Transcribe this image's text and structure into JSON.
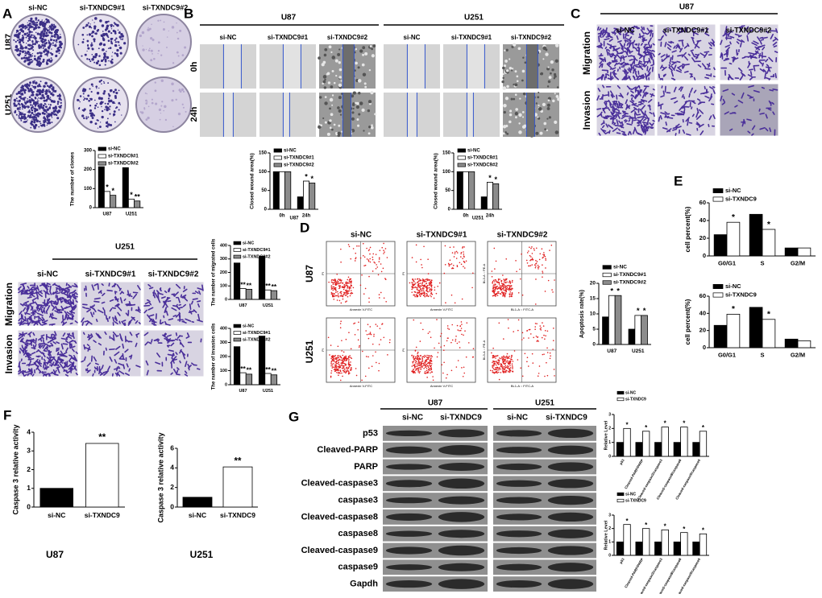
{
  "panel_a": {
    "letter": "A",
    "columns": [
      "si-NC",
      "si-TXNDC9#1",
      "si-TXNDC9#2"
    ],
    "rows": [
      "U87",
      "U251"
    ]
  },
  "panel_b": {
    "letter": "B",
    "groups": [
      "U87",
      "U251"
    ],
    "columns": [
      "si-NC",
      "si-TXNDC9#1",
      "si-TXNDC9#2"
    ],
    "rows": [
      "0h",
      "24h"
    ]
  },
  "panel_c": {
    "letter": "C",
    "group": "U87",
    "columns": [
      "si-NC",
      "si-TXNDC9#1",
      "si-TXNDC9#2"
    ],
    "rows": [
      "Migration",
      "Invasion"
    ]
  },
  "panel_u251": {
    "group": "U251",
    "columns": [
      "si-NC",
      "si-TXNDC9#1",
      "si-TXNDC9#2"
    ],
    "rows": [
      "Migration",
      "Invasion"
    ]
  },
  "panel_d": {
    "letter": "D",
    "columns": [
      "si-NC",
      "si-TXNDC9#1",
      "si-TXNDC9#2"
    ],
    "rows": [
      "U87",
      "U251"
    ],
    "x_axis_labels": [
      "Annexin V-FITC",
      "Annexin V-FITC",
      "BL1-A :: FITC-A"
    ],
    "y_axis_labels": [
      "PI",
      "PI",
      "BL3-A :: PE-A"
    ]
  },
  "panel_e": {
    "letter": "E"
  },
  "panel_f": {
    "letter": "F",
    "cells": [
      "U87",
      "U251"
    ]
  },
  "panel_g": {
    "letter": "G",
    "groups": [
      "U87",
      "U251"
    ],
    "columns": [
      "si-NC",
      "si-TXNDC9"
    ],
    "rows": [
      "p53",
      "Cleaved-PARP",
      "PARP",
      "Cleaved-caspase3",
      "caspase3",
      "Cleaved-caspase8",
      "caspase8",
      "Cleaved-caspase9",
      "caspase9",
      "Gapdh"
    ]
  },
  "charts": [
    {
      "type": "bar",
      "y_label": "The number of clones",
      "categories": [
        "U87",
        "U251"
      ],
      "ylim": [
        0,
        300
      ],
      "yticks": [
        0,
        100,
        200,
        300
      ],
      "series": [
        {
          "name": "si-NC",
          "color": "#000000",
          "values": [
            215,
            210
          ],
          "labels": [
            null,
            null
          ]
        },
        {
          "name": "si-TXNDC9#1",
          "color": "#ffffff",
          "values": [
            85,
            45
          ],
          "labels": [
            "*",
            "*"
          ]
        },
        {
          "name": "si-TXNDC9#2",
          "color": "#8c8c8c",
          "values": [
            65,
            35
          ],
          "labels": [
            "*",
            "**"
          ]
        }
      ]
    },
    {
      "type": "bar",
      "y_label": "Closed wound area(%)",
      "x_label": "U87",
      "categories": [
        "0h",
        "24h"
      ],
      "ylim": [
        0,
        150
      ],
      "yticks": [
        0,
        50,
        100,
        150
      ],
      "series": [
        {
          "name": "si-NC",
          "color": "#000000",
          "values": [
            100,
            33
          ],
          "labels": [
            null,
            null
          ]
        },
        {
          "name": "si-TXNDC9#1",
          "color": "#ffffff",
          "values": [
            100,
            75
          ],
          "labels": [
            null,
            "*"
          ]
        },
        {
          "name": "si-TXNDC9#2",
          "color": "#8c8c8c",
          "values": [
            100,
            70
          ],
          "labels": [
            null,
            "*"
          ]
        }
      ]
    },
    {
      "type": "bar",
      "y_label": "Closed wound area(%)",
      "x_label": "U251",
      "categories": [
        "0h",
        "24h"
      ],
      "ylim": [
        0,
        150
      ],
      "yticks": [
        0,
        50,
        100,
        150
      ],
      "series": [
        {
          "name": "si-NC",
          "color": "#000000",
          "values": [
            100,
            33
          ],
          "labels": [
            null,
            null
          ]
        },
        {
          "name": "si-TXNDC9#1",
          "color": "#ffffff",
          "values": [
            100,
            72
          ],
          "labels": [
            null,
            "*"
          ]
        },
        {
          "name": "si-TXNDC9#2",
          "color": "#8c8c8c",
          "values": [
            100,
            68
          ],
          "labels": [
            null,
            "*"
          ]
        }
      ]
    },
    {
      "type": "bar",
      "y_label": "The number of migrated cells",
      "categories": [
        "U87",
        "U251"
      ],
      "ylim": [
        0,
        400
      ],
      "yticks": [
        0,
        100,
        200,
        300,
        400
      ],
      "series": [
        {
          "name": "si-NC",
          "color": "#000000",
          "values": [
            270,
            320
          ],
          "labels": [
            null,
            null
          ]
        },
        {
          "name": "si-TXNDC9#1",
          "color": "#ffffff",
          "values": [
            80,
            70
          ],
          "labels": [
            "**",
            "**"
          ]
        },
        {
          "name": "si-TXNDC9#2",
          "color": "#8c8c8c",
          "values": [
            75,
            65
          ],
          "labels": [
            "**",
            "**"
          ]
        }
      ]
    },
    {
      "type": "bar",
      "y_label": "The number of invasion cells",
      "categories": [
        "U87",
        "U251"
      ],
      "ylim": [
        0,
        400
      ],
      "yticks": [
        0,
        100,
        200,
        300,
        400
      ],
      "series": [
        {
          "name": "si-NC",
          "color": "#000000",
          "values": [
            270,
            345
          ],
          "labels": [
            null,
            null
          ]
        },
        {
          "name": "si-TXNDC9#1",
          "color": "#ffffff",
          "values": [
            85,
            80
          ],
          "labels": [
            "**",
            "**"
          ]
        },
        {
          "name": "si-TXNDC9#2",
          "color": "#8c8c8c",
          "values": [
            75,
            70
          ],
          "labels": [
            "**",
            "**"
          ]
        }
      ]
    },
    {
      "type": "bar",
      "y_label": "Apoptosis rate(%)",
      "categories": [
        "U87",
        "U251"
      ],
      "ylim": [
        0,
        20
      ],
      "yticks": [
        0,
        5,
        10,
        15,
        20
      ],
      "series": [
        {
          "name": "si-NC",
          "color": "#000000",
          "values": [
            9,
            5
          ],
          "labels": [
            null,
            null
          ]
        },
        {
          "name": "si-TXNDC9#1",
          "color": "#ffffff",
          "values": [
            16,
            9.5
          ],
          "labels": [
            "*",
            "*"
          ]
        },
        {
          "name": "si-TXNDC9#2",
          "color": "#8c8c8c",
          "values": [
            16,
            9.5
          ],
          "labels": [
            "*",
            "*"
          ]
        }
      ]
    },
    {
      "type": "bar",
      "y_label": "cell percent(%)",
      "categories": [
        "G0/G1",
        "S",
        "G2/M"
      ],
      "ylim": [
        0,
        60
      ],
      "yticks": [
        0,
        20,
        40,
        60
      ],
      "series": [
        {
          "name": "si-NC",
          "color": "#000000",
          "values": [
            24,
            47,
            9
          ],
          "labels": [
            null,
            null,
            null
          ]
        },
        {
          "name": "si-TXNDC9",
          "color": "#ffffff",
          "values": [
            38,
            30,
            9
          ],
          "labels": [
            "*",
            "*",
            null
          ]
        }
      ]
    },
    {
      "type": "bar",
      "y_label": "cell percent(%)",
      "categories": [
        "G0/G1",
        "S",
        "G2/M"
      ],
      "ylim": [
        0,
        60
      ],
      "yticks": [
        0,
        20,
        40,
        60
      ],
      "series": [
        {
          "name": "si-NC",
          "color": "#000000",
          "values": [
            26,
            47,
            10
          ],
          "labels": [
            null,
            null,
            null
          ]
        },
        {
          "name": "si-TXNDC9",
          "color": "#ffffff",
          "values": [
            39,
            33,
            8
          ],
          "labels": [
            "*",
            "*",
            null
          ]
        }
      ]
    },
    {
      "type": "bar",
      "y_label": "Caspase 3 relative activity",
      "categories": [
        "si-NC",
        "si-TXNDC9"
      ],
      "ylim": [
        0,
        4
      ],
      "yticks": [
        0,
        1,
        2,
        3,
        4
      ],
      "values": [
        1.0,
        3.4
      ],
      "colors": [
        "#000000",
        "#ffffff"
      ],
      "labels": [
        null,
        "**"
      ]
    },
    {
      "type": "bar",
      "y_label": "Caspase 3 relative activity",
      "categories": [
        "si-NC",
        "si-TXNDC9"
      ],
      "ylim": [
        0,
        6
      ],
      "yticks": [
        0,
        2,
        4,
        6
      ],
      "values": [
        1.0,
        4.1
      ],
      "colors": [
        "#000000",
        "#ffffff"
      ],
      "labels": [
        null,
        "**"
      ]
    },
    {
      "type": "bar",
      "y_label": "Relative Level",
      "categories": [
        "p53",
        "Cleaved-PARP/PARP",
        "Cleaved-caspase3/caspase3",
        "Cleaved-caspase8/caspase8",
        "Cleaved-caspase9/caspase9"
      ],
      "ylim": [
        0,
        3
      ],
      "yticks": [
        0,
        1,
        2,
        3
      ],
      "series": [
        {
          "name": "si-NC",
          "color": "#000000",
          "values": [
            1,
            1,
            1,
            1,
            1
          ],
          "labels": [
            null,
            null,
            null,
            null,
            null
          ]
        },
        {
          "name": "si-TXNDC9",
          "color": "#ffffff",
          "values": [
            2.0,
            1.8,
            2.1,
            2.1,
            1.8
          ],
          "labels": [
            "*",
            "*",
            "*",
            "*",
            "*"
          ]
        }
      ]
    },
    {
      "type": "bar",
      "y_label": "Relative Level",
      "categories": [
        "p53",
        "Cleaved-PARP/PARP",
        "Cleaved-caspase3/caspase3",
        "Cleaved-caspase8/caspase8",
        "Cleaved-caspase9/caspase9"
      ],
      "ylim": [
        0,
        3
      ],
      "yticks": [
        0,
        1,
        2,
        3
      ],
      "series": [
        {
          "name": "si-NC",
          "color": "#000000",
          "values": [
            1,
            1,
            1,
            1,
            1
          ],
          "labels": [
            null,
            null,
            null,
            null,
            null
          ]
        },
        {
          "name": "si-TXNDC9",
          "color": "#ffffff",
          "values": [
            2.3,
            2.0,
            1.9,
            1.7,
            1.6
          ],
          "labels": [
            "*",
            "*",
            "*",
            "*",
            "*"
          ]
        }
      ]
    }
  ]
}
